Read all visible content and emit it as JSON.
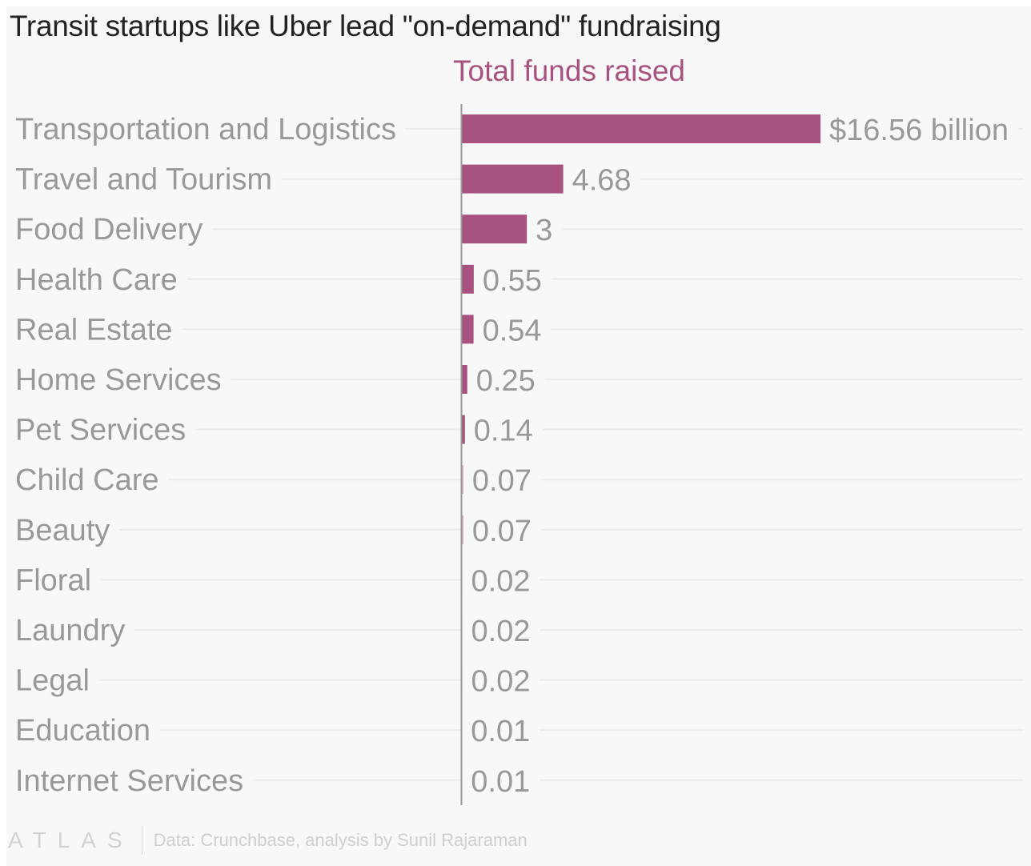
{
  "chart_data": {
    "type": "bar",
    "orientation": "horizontal",
    "title": "Transit startups like Uber lead \"on-demand\" fundraising",
    "series_name": "Total funds raised",
    "unit": "billion USD",
    "categories": [
      "Transportation and Logistics",
      "Travel and Tourism",
      "Food Delivery",
      "Health Care",
      "Real Estate",
      "Home Services",
      "Pet Services",
      "Child Care",
      "Beauty",
      "Floral",
      "Laundry",
      "Legal",
      "Education",
      "Internet Services"
    ],
    "values": [
      16.56,
      4.68,
      3,
      0.55,
      0.54,
      0.25,
      0.14,
      0.07,
      0.07,
      0.02,
      0.02,
      0.02,
      0.01,
      0.01
    ],
    "value_labels": [
      "$16.56 billion",
      "4.68",
      "3",
      "0.55",
      "0.54",
      "0.25",
      "0.14",
      "0.07",
      "0.07",
      "0.02",
      "0.02",
      "0.02",
      "0.01",
      "0.01"
    ],
    "xlabel": "",
    "ylabel": "",
    "xlim": [
      0,
      16.56
    ],
    "grid": true,
    "legend": "none",
    "bar_color": "#a8527f"
  },
  "footer": {
    "logo": "ATLAS",
    "source": "Data: Crunchbase, analysis by Sunil Rajaraman"
  }
}
